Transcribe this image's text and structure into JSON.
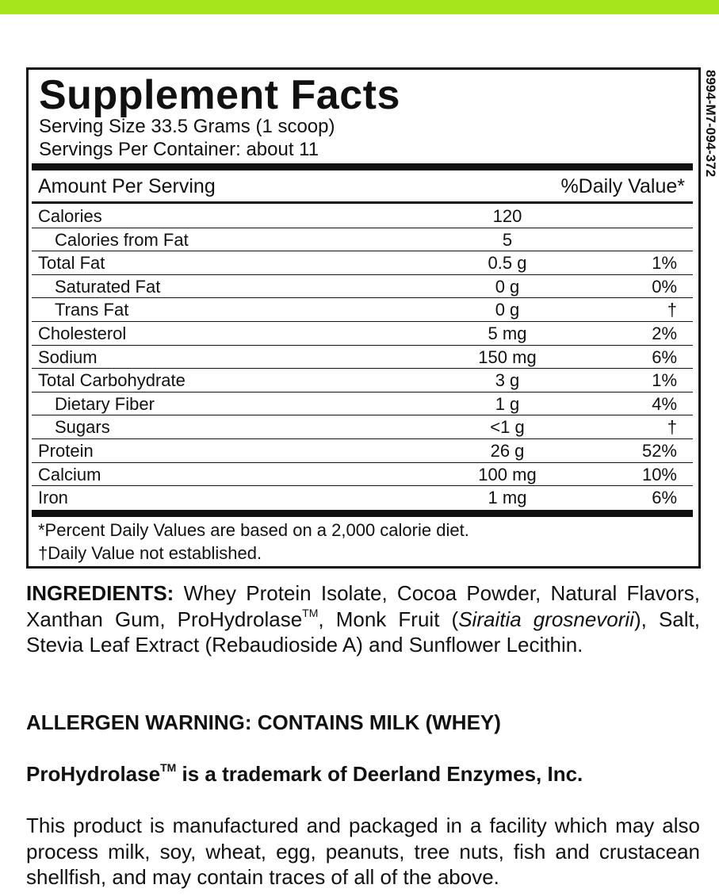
{
  "label": {
    "title": "Supplement Facts",
    "serving_size": "Serving Size 33.5 Grams (1 scoop)",
    "servings_per_container": "Servings Per Container: about 11",
    "amount_header": "Amount Per Serving",
    "dv_header": "%Daily Value*",
    "rows": [
      {
        "name": "Calories",
        "amount": "120"
      },
      {
        "name": "Calories from Fat",
        "amount": "5",
        "indent": true
      },
      {
        "name": "Total Fat",
        "amount": "0.5 g",
        "dv": "1%"
      },
      {
        "name": "Saturated Fat",
        "amount": "0 g",
        "dv": "0%",
        "indent": true
      },
      {
        "name": "Trans Fat",
        "amount": "0 g",
        "dv": "†",
        "indent": true
      },
      {
        "name": "Cholesterol",
        "amount": "5 mg",
        "dv": "2%"
      },
      {
        "name": "Sodium",
        "amount": "150 mg",
        "dv": "6%"
      },
      {
        "name": "Total Carbohydrate",
        "amount": "3 g",
        "dv": "1%"
      },
      {
        "name": "Dietary Fiber",
        "amount": "1 g",
        "dv": "4%",
        "indent": true
      },
      {
        "name": "Sugars",
        "amount": "<1 g",
        "dv": "†",
        "indent": true
      },
      {
        "name": "Protein",
        "amount": "26 g",
        "dv": "52%"
      },
      {
        "name": "Calcium",
        "amount": "100 mg",
        "dv": "10%"
      },
      {
        "name": "Iron",
        "amount": "1 mg",
        "dv": "6%"
      }
    ],
    "footnotes": [
      "*Percent Daily Values are based on a 2,000 calorie diet.",
      "†Daily Value not established."
    ],
    "code": "8994-M7-094-372"
  },
  "ingredients": {
    "label": "INGREDIENTS:",
    "parts": [
      {
        "text": " Whey Protein Isolate, Cocoa Powder, Natural Flavors, Xanthan Gum, ProHydrolase"
      },
      {
        "text": "TM",
        "style": "sup"
      },
      {
        "text": ", Monk Fruit ("
      },
      {
        "text": "Siraitia grosnevorii",
        "style": "italic"
      },
      {
        "text": "), Salt, Stevia Leaf Extract (Rebaudioside A) and Sunflower Lecithin."
      }
    ]
  },
  "allergen": "ALLERGEN WARNING: CONTAINS MILK (WHEY)",
  "trademark": {
    "name": "ProHydrolase",
    "mark": "TM",
    "text": " is a trademark of Deerland Enzymes, Inc."
  },
  "facility": "This product is manufactured and packaged in a facility which may also process milk, soy, wheat, egg, peanuts, tree nuts, fish and crustacean shellfish, and may contain traces of all of the above."
}
